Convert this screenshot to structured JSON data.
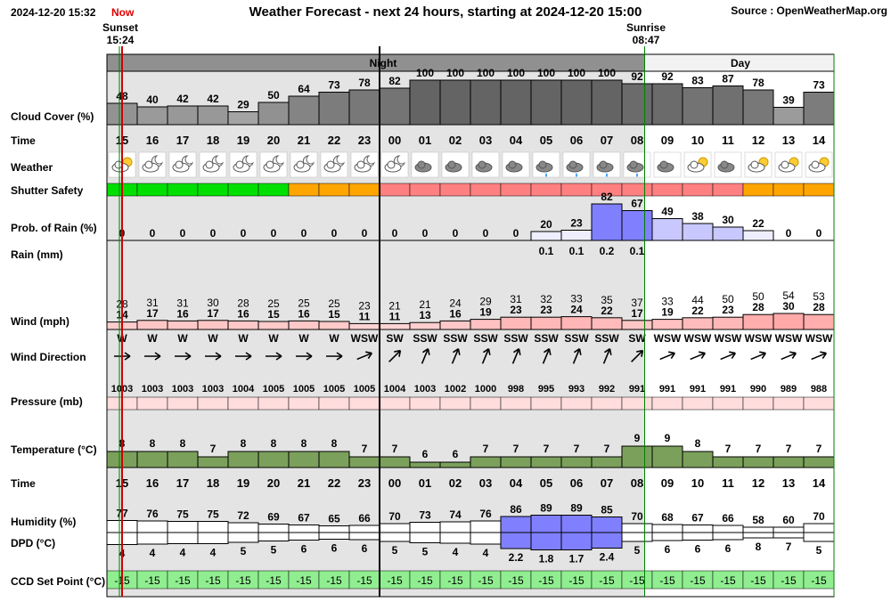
{
  "header": {
    "datetime": "2024-12-20 15:32",
    "now_label": "Now",
    "title": "Weather Forecast - next 24 hours, starting at 2024-12-20 15:00",
    "source": "Source : OpenWeatherMap.org",
    "sunset_label": "Sunset",
    "sunset_time": "15:24",
    "sunrise_label": "Sunrise",
    "sunrise_time": "08:47",
    "period_night": "Night",
    "period_day": "Day"
  },
  "row_labels": {
    "cloud": "Cloud Cover (%)",
    "time": "Time",
    "weather": "Weather",
    "shutter": "Shutter Safety",
    "rain_prob": "Prob. of Rain (%)",
    "rain": "Rain (mm)",
    "wind": "Wind (mph)",
    "wind_dir": "Wind Direction",
    "pressure": "Pressure (mb)",
    "temperature": "Temperature (°C)",
    "time2": "Time",
    "humidity": "Humidity (%)",
    "dpd": "DPD (°C)",
    "ccd": "CCD Set Point (°C)"
  },
  "colors": {
    "night_bg": "#e4e4e4",
    "day_bg": "#ffffff",
    "night_header": "#909090",
    "shutter_green": "#00e000",
    "shutter_orange": "#ffa500",
    "shutter_red": "#ff8080",
    "temp_fill": "#7ba05b",
    "ccd_fill": "#90ee90",
    "rain_fill": "#9999ff",
    "wind_fill": "#ff9999",
    "pressure_fill": "#ffdddd",
    "now_line": "#d00000"
  },
  "chart_data": {
    "type": "table",
    "hours": [
      "15",
      "16",
      "17",
      "18",
      "19",
      "20",
      "21",
      "22",
      "23",
      "00",
      "01",
      "02",
      "03",
      "04",
      "05",
      "06",
      "07",
      "08",
      "09",
      "10",
      "11",
      "12",
      "13",
      "14"
    ],
    "cloud_cover": [
      48,
      40,
      42,
      42,
      29,
      50,
      64,
      73,
      78,
      82,
      100,
      100,
      100,
      100,
      100,
      100,
      100,
      92,
      92,
      83,
      87,
      78,
      39,
      73
    ],
    "weather_icons": [
      "partly-cloudy-day-icon",
      "partly-cloudy-night-icon",
      "partly-cloudy-night-icon",
      "partly-cloudy-night-icon",
      "partly-cloudy-night-icon",
      "partly-cloudy-night-icon",
      "partly-cloudy-night-icon",
      "partly-cloudy-night-icon",
      "partly-cloudy-night-icon",
      "partly-cloudy-night-icon",
      "overcast-icon",
      "overcast-icon",
      "overcast-icon",
      "overcast-icon",
      "light-rain-icon",
      "light-rain-icon",
      "light-rain-icon",
      "light-rain-icon",
      "overcast-icon",
      "partly-cloudy-day-icon",
      "overcast-icon",
      "partly-cloudy-day-icon",
      "partly-cloudy-day-icon",
      "partly-cloudy-day-icon"
    ],
    "shutter_safety": [
      "green",
      "green",
      "green",
      "green",
      "green",
      "green",
      "orange",
      "orange",
      "orange",
      "red",
      "red",
      "red",
      "red",
      "red",
      "red",
      "red",
      "red",
      "red",
      "red",
      "red",
      "red",
      "orange",
      "orange",
      "orange"
    ],
    "rain_probability": [
      0,
      0,
      0,
      0,
      0,
      0,
      0,
      0,
      0,
      0,
      0,
      0,
      0,
      0,
      20,
      23,
      82,
      67,
      49,
      38,
      30,
      22,
      0,
      0
    ],
    "rain_mm": [
      null,
      null,
      null,
      null,
      null,
      null,
      null,
      null,
      null,
      null,
      null,
      null,
      null,
      null,
      "0.1",
      "0.1",
      "0.2",
      "0.1",
      null,
      null,
      null,
      null,
      null,
      null
    ],
    "wind_gust": [
      28,
      31,
      31,
      30,
      28,
      25,
      25,
      25,
      23,
      21,
      21,
      24,
      29,
      31,
      32,
      33,
      35,
      37,
      33,
      44,
      50,
      50,
      54,
      53
    ],
    "wind_speed": [
      14,
      17,
      16,
      17,
      16,
      15,
      16,
      15,
      11,
      11,
      13,
      16,
      19,
      23,
      23,
      24,
      22,
      17,
      19,
      22,
      23,
      28,
      30,
      28
    ],
    "wind_direction": [
      "W",
      "W",
      "W",
      "W",
      "W",
      "W",
      "W",
      "W",
      "WSW",
      "SW",
      "SSW",
      "SSW",
      "SSW",
      "SSW",
      "SSW",
      "SSW",
      "SSW",
      "SW",
      "WSW",
      "WSW",
      "WSW",
      "WSW",
      "WSW",
      "WSW"
    ],
    "pressure": [
      1003,
      1003,
      1003,
      1003,
      1004,
      1005,
      1005,
      1005,
      1005,
      1004,
      1003,
      1002,
      1000,
      998,
      995,
      993,
      992,
      991,
      991,
      991,
      991,
      990,
      989,
      988
    ],
    "temperature": [
      8,
      8,
      8,
      7,
      8,
      8,
      8,
      8,
      7,
      7,
      6,
      6,
      7,
      7,
      7,
      7,
      7,
      9,
      9,
      8,
      7,
      7,
      7,
      7
    ],
    "humidity": [
      77,
      76,
      75,
      75,
      72,
      69,
      67,
      65,
      66,
      70,
      73,
      74,
      76,
      86,
      89,
      89,
      85,
      70,
      68,
      67,
      66,
      58,
      60,
      70
    ],
    "dpd": [
      "4",
      "4",
      "4",
      "4",
      "5",
      "5",
      "6",
      "6",
      "6",
      "5",
      "5",
      "4",
      "4",
      "2.2",
      "1.8",
      "1.7",
      "2.4",
      "5",
      "6",
      "6",
      "6",
      "8",
      "7",
      "5"
    ],
    "ccd_set_point": [
      "-15",
      "-15",
      "-15",
      "-15",
      "-15",
      "-15",
      "-15",
      "-15",
      "-15",
      "-15",
      "-15",
      "-15",
      "-15",
      "-15",
      "-15",
      "-15",
      "-15",
      "-15",
      "-15",
      "-15",
      "-15",
      "-15",
      "-15",
      "-15"
    ]
  }
}
